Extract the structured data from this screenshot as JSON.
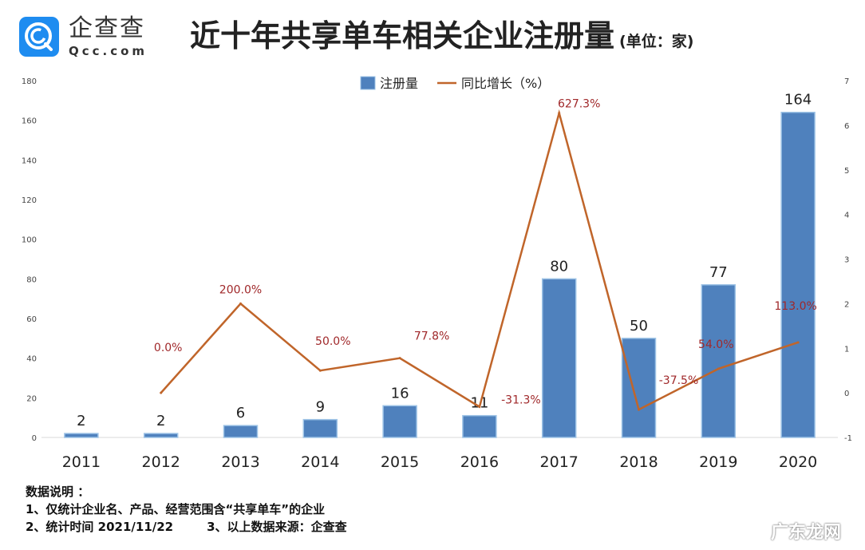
{
  "logo": {
    "name_cn": "企查查",
    "name_en": "Qcc.com",
    "color": "#1e8cf0"
  },
  "watermark": "广东龙网",
  "chart_data": {
    "type": "bar+line",
    "title": "近十年共享单车相关企业注册量",
    "title_unit": "(单位：家)",
    "categories": [
      "2011",
      "2012",
      "2013",
      "2014",
      "2015",
      "2016",
      "2017",
      "2018",
      "2019",
      "2020"
    ],
    "series": [
      {
        "name": "注册量",
        "type": "bar",
        "axis": "left",
        "color": "#4f81bd",
        "values": [
          2,
          2,
          6,
          9,
          16,
          11,
          80,
          50,
          77,
          164
        ]
      },
      {
        "name": "同比增长（%）",
        "type": "line",
        "axis": "right",
        "color": "#c0652a",
        "values": [
          null,
          0.0,
          2.0,
          0.5,
          0.778,
          -0.313,
          6.273,
          -0.375,
          0.54,
          1.13
        ],
        "labels": [
          "",
          "0.0%",
          "200.0%",
          "50.0%",
          "77.8%",
          "-31.3%",
          "627.3%",
          "-37.5%",
          "54.0%",
          "113.0%"
        ]
      }
    ],
    "left_axis": {
      "range": [
        0,
        180
      ],
      "ticks": [
        "0",
        "20",
        "40",
        "60",
        "80",
        "100",
        "120",
        "140",
        "160",
        "180"
      ]
    },
    "right_axis": {
      "range": [
        -1,
        7
      ],
      "ticks": [
        "-1",
        "0",
        "1",
        "2",
        "3",
        "4",
        "5",
        "6",
        "7"
      ]
    },
    "legend": "top-center",
    "grid": false
  },
  "footer": {
    "heading": "数据说明 ：",
    "note1": "1、仅统计企业名、产品、经营范围含“共享单车”的企业",
    "note2": "2、统计时间 2021/11/22",
    "note3": "3、以上数据来源：企查查"
  }
}
